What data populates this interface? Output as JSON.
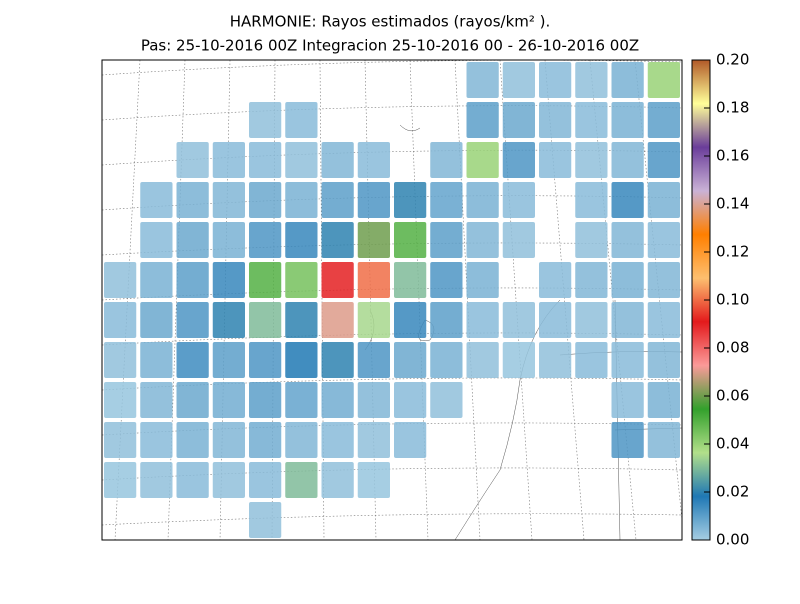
{
  "chart_data": {
    "type": "heatmap",
    "title": "HARMONIE: Rayos estimados  (rayos/km² ).",
    "subtitle": "Pas: 25-10-2016 00Z Integracion 25-10-2016 00 - 26-10-2016 00Z",
    "colormap": [
      "#a6cee3",
      "#1f78b4",
      "#b2df8a",
      "#33a02c",
      "#fb9a99",
      "#e31a1c",
      "#fdbf6f",
      "#ff7f00",
      "#cab2d6",
      "#6a3d9a",
      "#ffff99",
      "#b15928"
    ],
    "clim": [
      0,
      0.2
    ],
    "cticks": [
      {
        "value": 0,
        "label": "0.00"
      },
      {
        "value": 0.02,
        "label": "0.02"
      },
      {
        "value": 0.04,
        "label": "0.04"
      },
      {
        "value": 0.06,
        "label": "0.06"
      },
      {
        "value": 0.08,
        "label": "0.08"
      },
      {
        "value": 0.1,
        "label": "0.10"
      },
      {
        "value": 0.12,
        "label": "0.12"
      },
      {
        "value": 0.14,
        "label": "0.14"
      },
      {
        "value": 0.16,
        "label": "0.16"
      },
      {
        "value": 0.18,
        "label": "0.18"
      },
      {
        "value": 0.2,
        "label": "0.20"
      }
    ],
    "values": [
      [
        null,
        null,
        null,
        null,
        null,
        null,
        null,
        null,
        null,
        null,
        0.005,
        0.003,
        0.004,
        0.003,
        0.006,
        0.04
      ],
      [
        null,
        null,
        null,
        null,
        0.003,
        0.004,
        null,
        null,
        null,
        null,
        0.01,
        0.008,
        0.005,
        0.004,
        0.006,
        0.01
      ],
      [
        null,
        null,
        0.003,
        0.004,
        0.004,
        0.003,
        0.005,
        0.004,
        null,
        0.005,
        0.04,
        0.012,
        0.004,
        0.003,
        0.005,
        0.012
      ],
      [
        null,
        0.004,
        0.006,
        0.005,
        0.008,
        0.006,
        0.01,
        0.012,
        0.02,
        0.009,
        0.006,
        0.004,
        null,
        0.004,
        0.015,
        0.006
      ],
      [
        null,
        0.004,
        0.008,
        0.006,
        0.012,
        0.015,
        0.02,
        0.06,
        0.05,
        0.01,
        0.005,
        0.003,
        null,
        0.003,
        0.005,
        0.004
      ],
      [
        0.003,
        0.006,
        0.01,
        0.015,
        0.05,
        0.045,
        0.09,
        0.1,
        0.03,
        0.012,
        0.006,
        null,
        0.004,
        0.005,
        0.006,
        0.005
      ],
      [
        0.004,
        0.008,
        0.012,
        0.02,
        0.03,
        0.02,
        0.07,
        0.035,
        0.015,
        0.01,
        0.004,
        0.003,
        0.004,
        0.003,
        0.005,
        0.004
      ],
      [
        0.003,
        0.006,
        0.014,
        0.01,
        0.012,
        0.018,
        0.02,
        0.012,
        0.008,
        0.006,
        0.003,
        0.002,
        0.003,
        0.004,
        0.004,
        0.005
      ],
      [
        0.002,
        0.005,
        0.008,
        0.007,
        0.01,
        0.009,
        0.007,
        0.005,
        0.004,
        0.003,
        null,
        null,
        null,
        null,
        0.004,
        0.006
      ],
      [
        0.003,
        0.004,
        0.006,
        0.005,
        0.007,
        0.005,
        0.004,
        0.003,
        0.004,
        null,
        null,
        null,
        null,
        null,
        0.012,
        0.005
      ],
      [
        0.002,
        0.003,
        0.004,
        0.003,
        0.004,
        0.03,
        0.003,
        0.002,
        null,
        null,
        null,
        null,
        null,
        null,
        null,
        null
      ],
      [
        null,
        null,
        null,
        null,
        0.003,
        null,
        null,
        null,
        null,
        null,
        null,
        null,
        null,
        null,
        null,
        null
      ]
    ]
  }
}
